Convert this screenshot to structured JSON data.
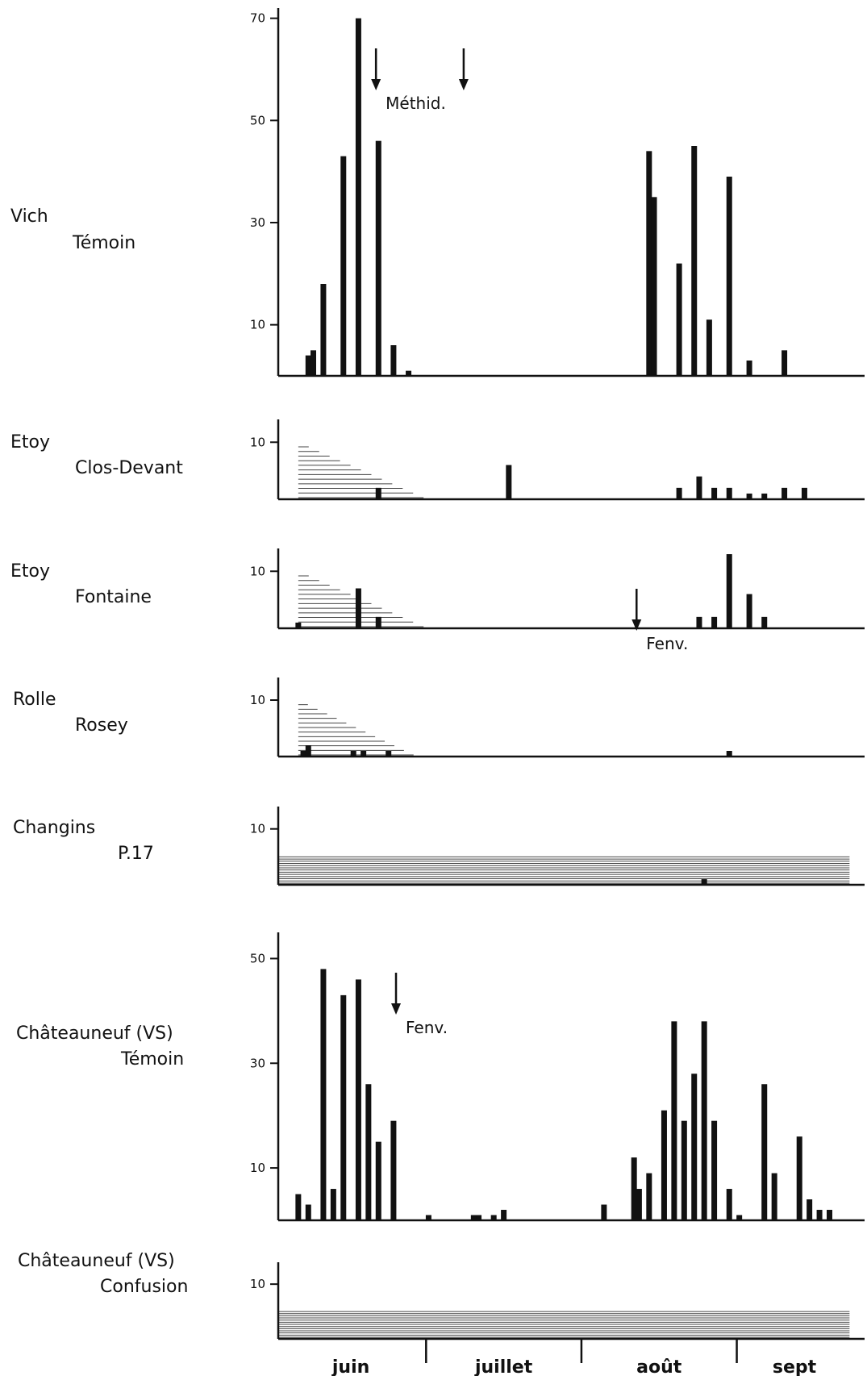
{
  "chart_data": [
    {
      "type": "bar",
      "site": "Vich",
      "plot": "Témoin",
      "yticks": [
        10,
        30,
        50,
        70
      ],
      "ylim": [
        0,
        72
      ],
      "x_unit": "day (1 = 1 juin)",
      "x": [
        7,
        8,
        10,
        14,
        17,
        21,
        24,
        27,
        75,
        76,
        81,
        84,
        87,
        91,
        95,
        102
      ],
      "values": [
        4,
        5,
        18,
        43,
        70,
        46,
        6,
        1,
        44,
        35,
        22,
        45,
        11,
        39,
        3,
        5
      ],
      "annotations": [
        {
          "label": "Méthid.",
          "x": 20.5
        },
        {
          "label": "",
          "x": 38
        }
      ]
    },
    {
      "type": "bar",
      "site": "Etoy",
      "plot": "Clos-Devant",
      "yticks": [
        10
      ],
      "ylim": [
        0,
        14
      ],
      "x_unit": "day (1 = 1 juin)",
      "x": [
        21,
        47,
        81,
        85,
        88,
        91,
        95,
        98,
        102,
        106
      ],
      "values": [
        2,
        6,
        2,
        4,
        2,
        2,
        1,
        1,
        2,
        2
      ],
      "hatched_x_range": [
        5,
        30
      ]
    },
    {
      "type": "bar",
      "site": "Etoy",
      "plot": "Fontaine",
      "yticks": [
        10
      ],
      "ylim": [
        0,
        14
      ],
      "x_unit": "day (1 = 1 juin)",
      "x": [
        5,
        17,
        21,
        85,
        88,
        91,
        95,
        98
      ],
      "values": [
        1,
        7,
        2,
        2,
        2,
        13,
        6,
        2
      ],
      "hatched_x_range": [
        5,
        30
      ],
      "annotations": [
        {
          "label": "Fenv.",
          "x": 72.5
        }
      ]
    },
    {
      "type": "bar",
      "site": "Rolle",
      "plot": "Rosey",
      "yticks": [
        10
      ],
      "ylim": [
        0,
        14
      ],
      "x_unit": "day (1 = 1 juin)",
      "x": [
        6,
        7,
        16,
        18,
        23,
        91
      ],
      "values": [
        1,
        2,
        1,
        1,
        1,
        1
      ],
      "hatched_x_range": [
        5,
        28
      ]
    },
    {
      "type": "bar",
      "site": "Changins",
      "plot": "P.17",
      "yticks": [
        10
      ],
      "ylim": [
        0,
        14
      ],
      "x_unit": "day (1 = 1 juin)",
      "x": [
        86
      ],
      "values": [
        1
      ],
      "hatched_x_range": [
        1,
        115
      ]
    },
    {
      "type": "bar",
      "site": "Châteauneuf (VS)",
      "plot": "Témoin",
      "yticks": [
        10,
        30,
        50
      ],
      "ylim": [
        0,
        55
      ],
      "x_unit": "day (1 = 1 juin)",
      "x": [
        5,
        7,
        10,
        12,
        14,
        17,
        19,
        21,
        24,
        31,
        40,
        41,
        44,
        46,
        66,
        72,
        73,
        75,
        78,
        80,
        82,
        84,
        86,
        88,
        91,
        93,
        98,
        100,
        105,
        107,
        109,
        111
      ],
      "values": [
        5,
        3,
        48,
        6,
        43,
        46,
        26,
        15,
        19,
        1,
        1,
        1,
        1,
        2,
        3,
        12,
        6,
        9,
        21,
        38,
        19,
        28,
        38,
        19,
        6,
        1,
        26,
        9,
        16,
        4,
        2,
        2
      ],
      "annotations": [
        {
          "label": "Fenv.",
          "x": 24.5
        }
      ]
    },
    {
      "type": "bar",
      "site": "Châteauneuf (VS)",
      "plot": "Confusion",
      "yticks": [
        10
      ],
      "ylim": [
        0,
        14
      ],
      "x_unit": "day (1 = 1 juin)",
      "x": [],
      "values": [],
      "hatched_x_range": [
        1,
        115
      ]
    }
  ],
  "x_axis": {
    "months": [
      {
        "label": "juin",
        "start": 1,
        "end": 30
      },
      {
        "label": "juillet",
        "start": 31,
        "end": 61
      },
      {
        "label": "août",
        "start": 62,
        "end": 92
      },
      {
        "label": "sept",
        "start": 93,
        "end": 115
      }
    ]
  }
}
